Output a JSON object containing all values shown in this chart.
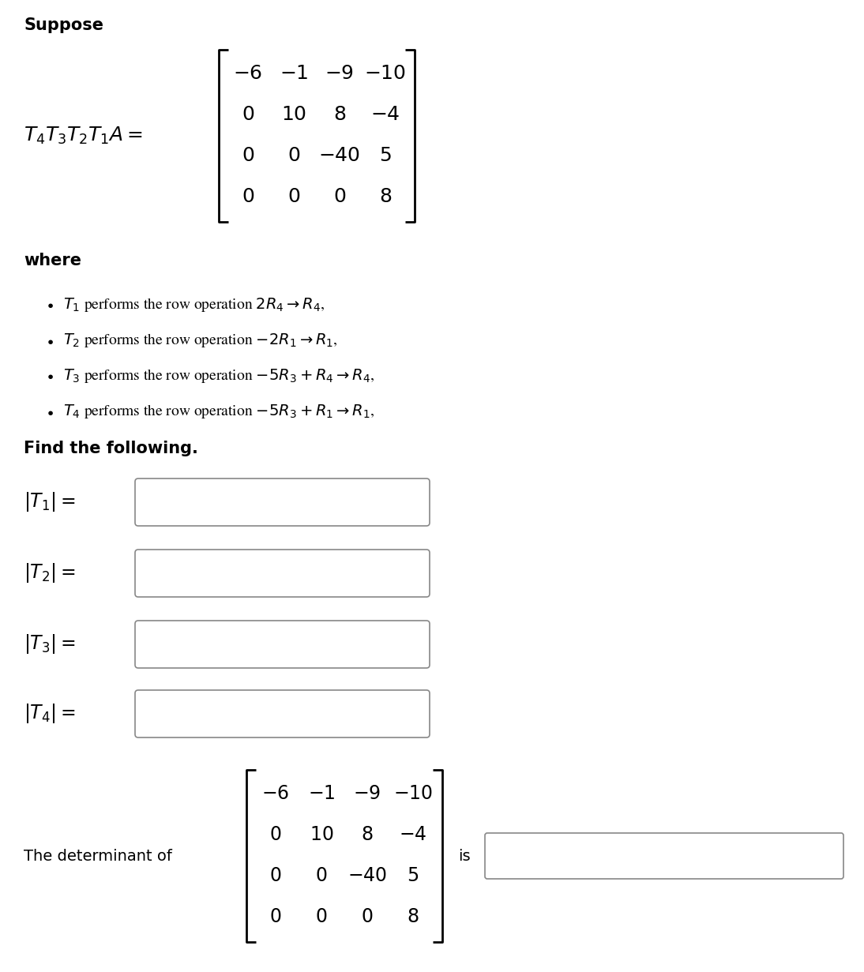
{
  "background_color": "#ffffff",
  "matrix": [
    [
      "-6",
      "-1",
      "-9",
      "-10"
    ],
    [
      "0",
      "10",
      "8",
      "-4"
    ],
    [
      "0",
      "0",
      "-40",
      "5"
    ],
    [
      "0",
      "0",
      "0",
      "8"
    ]
  ],
  "bottom_matrix": [
    [
      "-6",
      "-1",
      "-9",
      "-10"
    ],
    [
      "0",
      "10",
      "8",
      "-4"
    ],
    [
      "0",
      "0",
      "-40",
      "5"
    ],
    [
      "0",
      "0",
      "0",
      "8"
    ]
  ],
  "text_color": "#000000",
  "box_edge_color": "#888888",
  "font_size": 14
}
